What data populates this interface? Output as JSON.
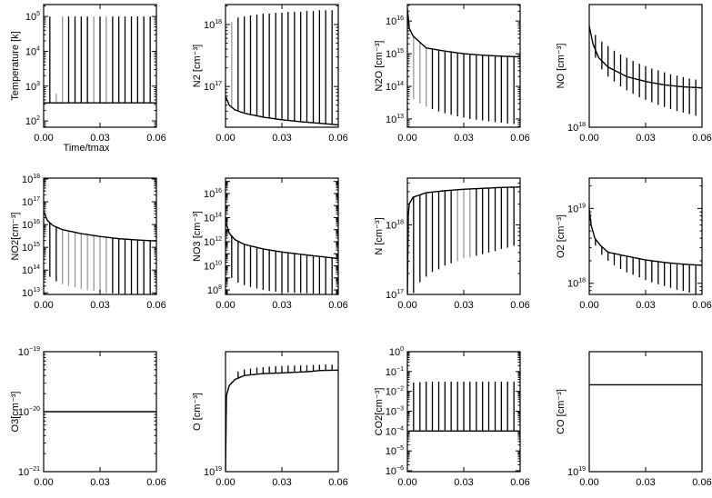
{
  "chart_data": [
    {
      "type": "line",
      "ylabel": "Temperature [k]",
      "xlabel": "Time/tmax",
      "yscale": "log",
      "xlim": [
        0,
        0.06
      ],
      "ylim": [
        66,
        220000
      ],
      "yticks": [
        2,
        3,
        4,
        5
      ],
      "curve": [
        [
          0,
          330
        ],
        [
          0.06,
          330
        ]
      ],
      "spikes": {
        "low": "curve",
        "high": [
          100000,
          600,
          100000,
          100000,
          100000,
          100000,
          100000,
          100000,
          100000,
          100000,
          100000,
          100000,
          100000,
          100000,
          100000,
          100000,
          100000
        ],
        "gray": [
          1,
          2,
          7,
          9
        ]
      }
    },
    {
      "type": "line",
      "ylabel": "N2 [cm⁻³]",
      "xlabel": "",
      "yscale": "log",
      "xlim": [
        0,
        0.06
      ],
      "ylim": [
        2.2e+16,
        2.1e+18
      ],
      "yticks": [
        17,
        18
      ],
      "curve": [
        [
          0,
          7e+16
        ],
        [
          0.002,
          5e+16
        ],
        [
          0.005,
          4.2e+16
        ],
        [
          0.01,
          3.7e+16
        ],
        [
          0.02,
          3.2e+16
        ],
        [
          0.03,
          2.9e+16
        ],
        [
          0.04,
          2.7e+16
        ],
        [
          0.05,
          2.55e+16
        ],
        [
          0.06,
          2.4e+16
        ]
      ],
      "spikes": {
        "low": "curve",
        "high": [
          1.1e+18,
          1.3e+18,
          1.35e+18,
          1.4e+18,
          1.45e+18,
          1.5e+18,
          1.5e+18,
          1.55e+18,
          1.55e+18,
          1.6e+18,
          1.6e+18,
          1.6e+18,
          1.65e+18,
          1.65e+18,
          1.7e+18,
          1.7e+18,
          1.7e+18
        ],
        "gray": [
          0
        ]
      }
    },
    {
      "type": "line",
      "ylabel": "N2O [cm⁻³]",
      "xlabel": "",
      "yscale": "log",
      "xlim": [
        0,
        0.06
      ],
      "ylim": [
        5600000000000.0,
        3.2e+16
      ],
      "yticks": [
        13,
        14,
        15,
        16
      ],
      "curve": [
        [
          0,
          2.5e+16
        ],
        [
          0.001,
          6000000000000000.0
        ],
        [
          0.003,
          3500000000000000.0
        ],
        [
          0.01,
          1500000000000000.0
        ],
        [
          0.02,
          1200000000000000.0
        ],
        [
          0.03,
          1000000000000000.0
        ],
        [
          0.04,
          900000000000000.0
        ],
        [
          0.05,
          840000000000000.0
        ],
        [
          0.06,
          800000000000000.0
        ]
      ],
      "spikes": {
        "high": "curve",
        "low": [
          40000000000000.0,
          30000000000000.0,
          24000000000000.0,
          20000000000000.0,
          17000000000000.0,
          15000000000000.0,
          13500000000000.0,
          12000000000000.0,
          11000000000000.0,
          10000000000000.0,
          9500000000000.0,
          9000000000000.0,
          8500000000000.0,
          8000000000000.0,
          7700000000000.0,
          7300000000000.0,
          7000000000000.0
        ],
        "gray": [
          0,
          1,
          2
        ]
      }
    },
    {
      "type": "line",
      "ylabel": "NO [cm⁻³]",
      "xlabel": "",
      "yscale": "log",
      "xlim": [
        0,
        0.06
      ],
      "ylim": [
        1e+18,
        1.26e+18
      ],
      "yticks": [
        18
      ],
      "curve": [
        [
          0,
          1.21e+18
        ],
        [
          0.002,
          1.17e+18
        ],
        [
          0.005,
          1.14e+18
        ],
        [
          0.01,
          1.12e+18
        ],
        [
          0.02,
          1.1e+18
        ],
        [
          0.03,
          1.09e+18
        ],
        [
          0.04,
          1.083e+18
        ],
        [
          0.05,
          1.079e+18
        ],
        [
          0.06,
          1.077e+18
        ]
      ],
      "spikes": {
        "high": [
          1.19e+18,
          1.175e+18,
          1.165e+18,
          1.155e+18,
          1.147e+18,
          1.14e+18,
          1.133e+18,
          1.127e+18,
          1.122e+18,
          1.117e+18,
          1.113e+18,
          1.109e+18,
          1.105e+18,
          1.102e+18,
          1.099e+18,
          1.096e+18,
          1.094e+18
        ],
        "low": [
          1.14e+18,
          1.115e+18,
          1.1e+18,
          1.09e+18,
          1.08e+18,
          1.072e+18,
          1.065e+18,
          1.058e+18,
          1.053e+18,
          1.048e+18,
          1.043e+18,
          1.039e+18,
          1.035e+18,
          1.031e+18,
          1.028e+18,
          1.025e+18,
          1.022e+18
        ],
        "gray": []
      }
    },
    {
      "type": "line",
      "ylabel": "NO2[cm⁻³]",
      "xlabel": "",
      "yscale": "log",
      "xlim": [
        0,
        0.06
      ],
      "ylim": [
        8500000000000.0,
        1.1e+18
      ],
      "yticks": [
        13,
        14,
        15,
        16,
        17,
        18
      ],
      "curve": [
        [
          0,
          4e+16
        ],
        [
          0.002,
          1.5e+16
        ],
        [
          0.005,
          9000000000000000.0
        ],
        [
          0.01,
          6000000000000000.0
        ],
        [
          0.02,
          4000000000000000.0
        ],
        [
          0.03,
          3000000000000000.0
        ],
        [
          0.04,
          2400000000000000.0
        ],
        [
          0.05,
          2100000000000000.0
        ],
        [
          0.06,
          1900000000000000.0
        ]
      ],
      "spikes": {
        "high": "curve",
        "low": [
          50000000000000.0,
          32000000000000.0,
          24000000000000.0,
          20000000000000.0,
          17000000000000.0,
          15000000000000.0,
          13000000000000.0,
          12000000000000.0,
          11000000000000.0,
          10000000000000.0,
          9500000000000.0,
          9200000000000.0,
          9000000000000.0,
          8900000000000.0,
          8800000000000.0,
          8700000000000.0,
          8600000000000.0
        ],
        "gray": [
          2,
          3,
          4,
          5,
          6,
          7,
          8,
          9
        ]
      }
    },
    {
      "type": "line",
      "ylabel": "NO3 [cm⁻³]",
      "xlabel": "",
      "yscale": "log",
      "xlim": [
        0,
        0.06
      ],
      "ylim": [
        42000000.0,
        1.9e+17
      ],
      "yticks": [
        8,
        10,
        12,
        14,
        16
      ],
      "curve": [
        [
          0,
          50000000000000.0
        ],
        [
          0.002,
          5000000000000.0
        ],
        [
          0.005,
          1500000000000.0
        ],
        [
          0.01,
          600000000000.0
        ],
        [
          0.02,
          250000000000.0
        ],
        [
          0.03,
          140000000000.0
        ],
        [
          0.04,
          90000000000.0
        ],
        [
          0.05,
          60000000000.0
        ],
        [
          0.06,
          40000000000.0
        ]
      ],
      "spikes": {
        "high": "curve",
        "low": [
          1000000000.0,
          400000000.0,
          250000000.0,
          180000000.0,
          130000000.0,
          100000000.0,
          80000000.0,
          70000000.0,
          65000000.0,
          60000000.0,
          58000000.0,
          55000000.0,
          52000000.0,
          50000000.0,
          48000000.0,
          46000000.0,
          45000000.0
        ],
        "gray": []
      }
    },
    {
      "type": "line",
      "ylabel": "N [cm⁻³]",
      "xlabel": "",
      "yscale": "log",
      "xlim": [
        0,
        0.06
      ],
      "ylim": [
        1e+17,
        4.7e+18
      ],
      "yticks": [
        17,
        18
      ],
      "curve": [
        [
          0,
          1e+17
        ],
        [
          0.0005,
          1.4e+18
        ],
        [
          0.001,
          2e+18
        ],
        [
          0.003,
          2.5e+18
        ],
        [
          0.01,
          2.9e+18
        ],
        [
          0.02,
          3.1e+18
        ],
        [
          0.03,
          3.25e+18
        ],
        [
          0.04,
          3.35e+18
        ],
        [
          0.05,
          3.45e+18
        ],
        [
          0.06,
          3.5e+18
        ]
      ],
      "spikes": {
        "high": "curve",
        "low": [
          1.05e+17,
          1.5e+17,
          1.8e+17,
          2.1e+17,
          2.3e+17,
          2.6e+17,
          2.8e+17,
          3e+17,
          3.3e+17,
          3.4e+17,
          3.6e+17,
          3.8e+17,
          4e+17,
          4.2e+17,
          4.5e+17,
          4.7e+17,
          5e+17
        ],
        "gray": [
          7,
          8,
          9
        ]
      }
    },
    {
      "type": "line",
      "ylabel": "O2 [cm⁻³]",
      "xlabel": "",
      "yscale": "log",
      "xlim": [
        0,
        0.06
      ],
      "ylim": [
        7.1e+17,
        2.54e+19
      ],
      "yticks": [
        18,
        19
      ],
      "curve": [
        [
          0,
          1e+19
        ],
        [
          0.001,
          6e+18
        ],
        [
          0.003,
          4e+18
        ],
        [
          0.006,
          3.2e+18
        ],
        [
          0.01,
          2.6e+18
        ],
        [
          0.02,
          2.3e+18
        ],
        [
          0.03,
          2.05e+18
        ],
        [
          0.04,
          1.9e+18
        ],
        [
          0.05,
          1.8e+18
        ],
        [
          0.06,
          1.74e+18
        ]
      ],
      "spikes": {
        "high": "curve",
        "low": [
          3.2e+18,
          2.4e+18,
          2e+18,
          1.75e+18,
          1.55e+18,
          1.4e+18,
          1.3e+18,
          1.2e+18,
          1.1e+18,
          1.03e+18,
          9.7e+17,
          9.2e+17,
          8.7e+17,
          8.2e+17,
          7.9e+17,
          7.5e+17,
          7.2e+17
        ],
        "gray": []
      }
    },
    {
      "type": "line",
      "ylabel": "O3[cm⁻³]",
      "xlabel": "",
      "yscale": "log",
      "xlim": [
        0,
        0.06
      ],
      "ylim": [
        1e-21,
        1e-19
      ],
      "yticks": [
        -21,
        -20,
        -19
      ],
      "curve": [
        [
          0,
          1e-20
        ],
        [
          0.06,
          1e-20
        ]
      ],
      "spikes": null
    },
    {
      "type": "line",
      "ylabel": "O [cm⁻³]",
      "xlabel": "",
      "yscale": "log",
      "xlim": [
        0,
        0.06
      ],
      "ylim": [
        1e+19,
        1.059e+19
      ],
      "yticks": [
        19
      ],
      "curve": [
        [
          0,
          1e+19
        ],
        [
          0.0005,
          1.037e+19
        ],
        [
          0.002,
          1.042e+19
        ],
        [
          0.005,
          1.045e+19
        ],
        [
          0.01,
          1.047e+19
        ],
        [
          0.02,
          1.048e+19
        ],
        [
          0.03,
          1.0483e+19
        ],
        [
          0.045,
          1.049e+19
        ],
        [
          0.05,
          1.0495e+19
        ],
        [
          0.06,
          1.0497e+19
        ]
      ],
      "spikes": {
        "low": "curve",
        "high": [
          1.044e+19,
          1.049e+19,
          1.05e+19,
          1.0505e+19,
          1.051e+19,
          1.0512e+19,
          1.0515e+19,
          1.0517e+19,
          1.0518e+19,
          1.052e+19,
          1.052e+19,
          1.0521e+19,
          1.0522e+19,
          1.0523e+19,
          1.0524e+19,
          1.0525e+19,
          1.0525e+19
        ],
        "gray": [
          0
        ]
      }
    },
    {
      "type": "line",
      "ylabel": "CO2[cm⁻³]",
      "xlabel": "",
      "yscale": "log",
      "xlim": [
        0,
        0.06
      ],
      "ylim": [
        9e-07,
        1
      ],
      "yticks": [
        -6,
        -5,
        -4,
        -3,
        -2,
        -1,
        0
      ],
      "curve": [
        [
          0,
          0.0001
        ],
        [
          0.06,
          0.0001
        ]
      ],
      "spikes": {
        "low": "curve",
        "high": [
          0.028,
          0.029,
          0.031,
          0.031,
          0.031,
          0.031,
          0.031,
          0.031,
          0.031,
          0.031,
          0.031,
          0.031,
          0.031,
          0.031,
          0.031,
          0.031,
          0.031
        ],
        "gray": []
      }
    },
    {
      "type": "line",
      "ylabel": "CO [cm⁻³]",
      "xlabel": "",
      "yscale": "log",
      "xlim": [
        0,
        0.06
      ],
      "ylim": [
        1e+19,
        1.0965e+19
      ],
      "yticks": [
        19
      ],
      "curve": [
        [
          0,
          1.069e+19
        ],
        [
          0.06,
          1.069e+19
        ]
      ],
      "spikes": null
    }
  ],
  "spike_x": [
    0.0033,
    0.0067,
    0.01,
    0.0133,
    0.0167,
    0.02,
    0.0233,
    0.0267,
    0.03,
    0.0333,
    0.0367,
    0.04,
    0.0433,
    0.0467,
    0.05,
    0.0533,
    0.0567
  ],
  "xtick_labels": [
    "0.00",
    "0.03",
    "0.06"
  ],
  "xtick_values": [
    0,
    0.03,
    0.06
  ],
  "colors": {
    "line": "#000000",
    "highlight_spike": "#999999"
  }
}
